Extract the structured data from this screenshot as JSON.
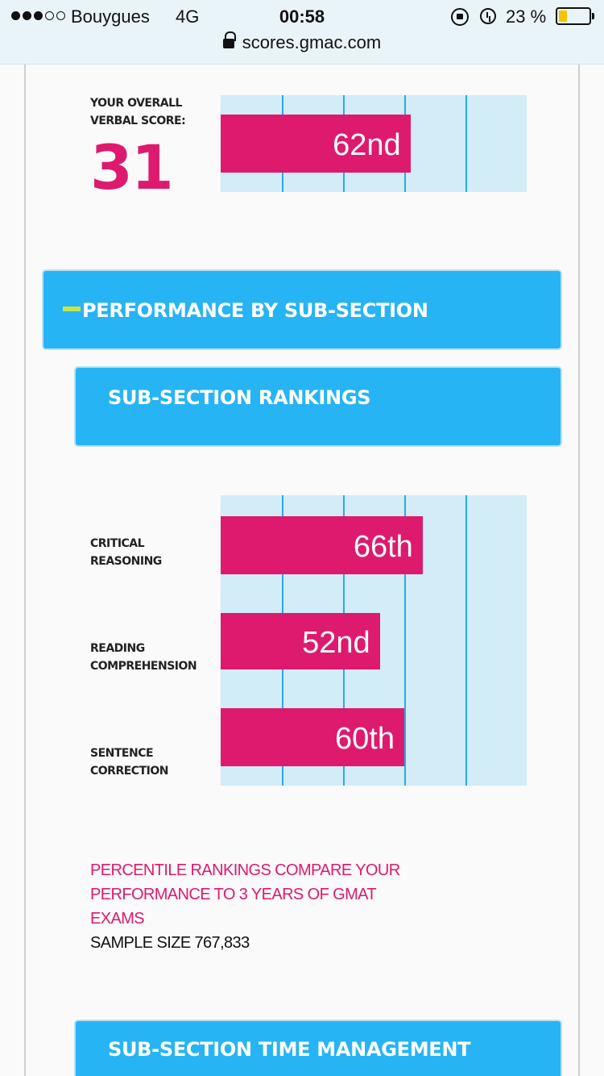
{
  "status_bar": {
    "signal_dots": 5,
    "signal_filled": 3,
    "carrier": "Bouygues",
    "network": "4G",
    "time": "00:58",
    "battery_percent": "23 %",
    "battery_level": 0.23,
    "icons": [
      "orientation-lock-icon",
      "alarm-icon",
      "battery-icon"
    ]
  },
  "browser": {
    "url": "scores.gmac.com"
  },
  "overall": {
    "label_line1": "YOUR OVERALL",
    "label_line2": "VERBAL SCORE:",
    "score": "31",
    "percentile_label": "62nd",
    "percentile": 62
  },
  "performance_header": {
    "title": "PERFORMANCE BY SUB-SECTION"
  },
  "rankings_header": {
    "title": "SUB-SECTION RANKINGS"
  },
  "chart_data": {
    "type": "bar",
    "orientation": "horizontal",
    "categories": [
      "CRITICAL REASONING",
      "READING COMPREHENSION",
      "SENTENCE CORRECTION"
    ],
    "category_lines": [
      [
        "CRITICAL",
        "REASONING"
      ],
      [
        "READING",
        "COMPREHENSION"
      ],
      [
        "SENTENCE",
        "CORRECTION"
      ]
    ],
    "values": [
      66,
      52,
      60
    ],
    "value_labels": [
      "66th",
      "52nd",
      "60th"
    ],
    "xlim": [
      0,
      100
    ],
    "gridlines": [
      20,
      40,
      60,
      80
    ],
    "colors": {
      "bar": "#dd1a6e",
      "background": "#d2ecf8",
      "grid": "#2aa9ea"
    }
  },
  "note": {
    "line1": "PERCENTILE RANKINGS COMPARE YOUR",
    "line2": "PERFORMANCE TO 3 YEARS OF GMAT",
    "line3": "EXAMS",
    "sample": "SAMPLE SIZE 767,833"
  },
  "time_header": {
    "title": "SUB-SECTION TIME MANAGEMENT"
  },
  "colors": {
    "accent_pink": "#dd1a6e",
    "header_blue": "#27b4f4",
    "minus_green": "#c6e34a"
  }
}
